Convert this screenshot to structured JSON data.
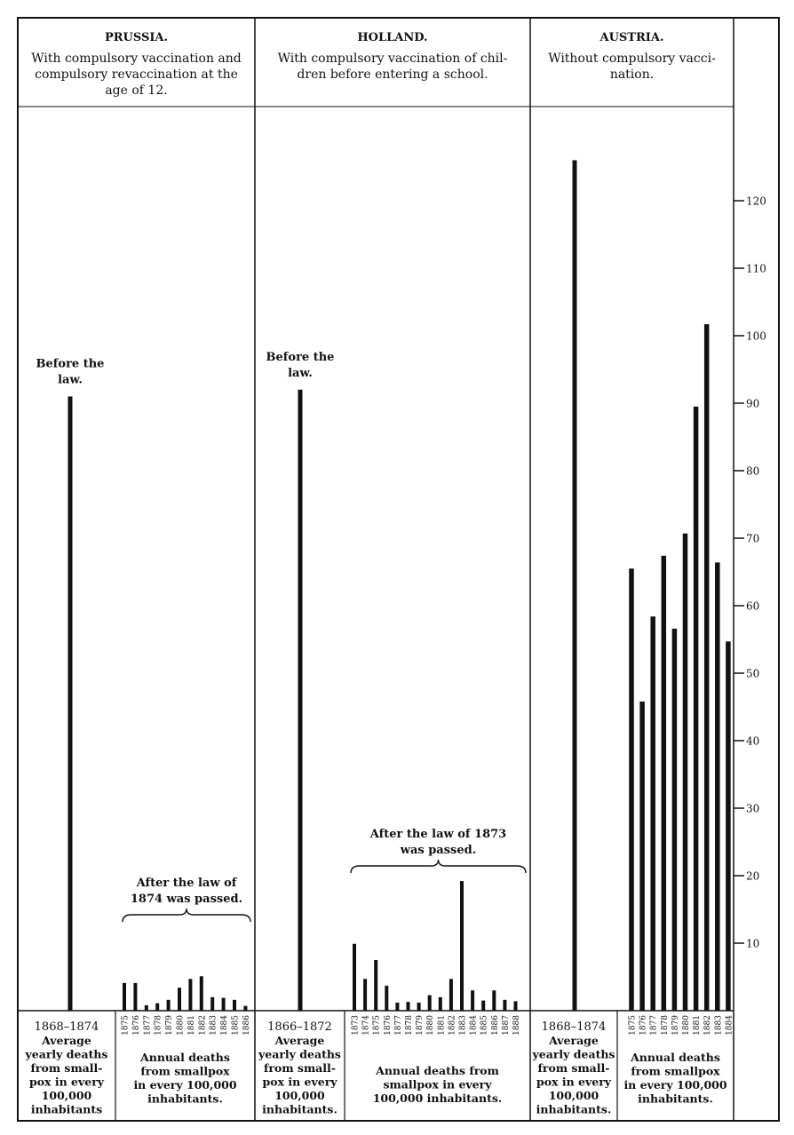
{
  "chart_data": {
    "type": "bar",
    "y_axis": {
      "ticks": [
        10,
        20,
        30,
        40,
        50,
        60,
        70,
        80,
        90,
        100,
        110,
        120
      ],
      "position": "right",
      "ylim": [
        0,
        130
      ]
    },
    "grid": false,
    "panels": [
      {
        "country": "PRUSSIA.",
        "description": [
          "With compulsory vaccination and",
          "compulsory revaccination at the",
          "age of 12."
        ],
        "before": {
          "label": [
            "Before the",
            "law."
          ],
          "period": "1868–1874",
          "value": 91,
          "caption": [
            "Average",
            "yearly deaths",
            "from small-",
            "pox in every",
            "100,000",
            "inhabitants"
          ]
        },
        "after": {
          "label": [
            "After the law of",
            "1874 was passed."
          ],
          "caption": [
            "Annual deaths",
            "from smallpox",
            "in every 100,000",
            "inhabitants."
          ],
          "years": [
            "1875",
            "1876",
            "1877",
            "1878",
            "1879",
            "1880",
            "1881",
            "1882",
            "1883",
            "1884",
            "1885",
            "1886"
          ],
          "values": [
            4.1,
            4.1,
            0.8,
            1.1,
            1.6,
            3.4,
            4.7,
            5.1,
            2.0,
            1.9,
            1.6,
            0.7
          ]
        }
      },
      {
        "country": "HOLLAND.",
        "description": [
          "With compulsory vaccination of chil-",
          "dren before entering a school."
        ],
        "before": {
          "label": [
            "Before the",
            "law."
          ],
          "period": "1866–1872",
          "value": 92,
          "caption": [
            "Average",
            "yearly deaths",
            "from small-",
            "pox in every",
            "100,000",
            "inhabitants."
          ]
        },
        "after": {
          "label": [
            "After the law of 1873",
            "was passed."
          ],
          "caption": [
            "Annual deaths from",
            "smallpox  in  every",
            "100,000 inhabitants."
          ],
          "years": [
            "1873",
            "1874",
            "1875",
            "1876",
            "1877",
            "1878",
            "1879",
            "1880",
            "1881",
            "1882",
            "1883",
            "1884",
            "1885",
            "1886",
            "1887",
            "1888"
          ],
          "values": [
            9.9,
            4.7,
            7.5,
            3.7,
            1.2,
            1.3,
            1.2,
            2.3,
            2.0,
            4.7,
            19.2,
            3.0,
            1.5,
            3.0,
            1.6,
            1.4
          ]
        }
      },
      {
        "country": "AUSTRIA.",
        "description": [
          "Without compulsory vacci-",
          "nation."
        ],
        "before": {
          "label": [],
          "period": "1868–1874",
          "value": 126,
          "caption": [
            "Average",
            "yearly deaths",
            "from small-",
            "pox in every",
            "100,000",
            "inhabitants."
          ]
        },
        "after": {
          "label": [],
          "caption": [
            "Annual deaths",
            "from  smallpox",
            "in every 100,000",
            "inhabitants."
          ],
          "years": [
            "1875",
            "1876",
            "1877",
            "1878",
            "1879",
            "1880",
            "1881",
            "1882",
            "1883",
            "1884"
          ],
          "values": [
            65.5,
            45.8,
            58.4,
            67.4,
            56.6,
            70.7,
            89.5,
            101.7,
            66.4,
            54.7
          ]
        }
      }
    ]
  }
}
